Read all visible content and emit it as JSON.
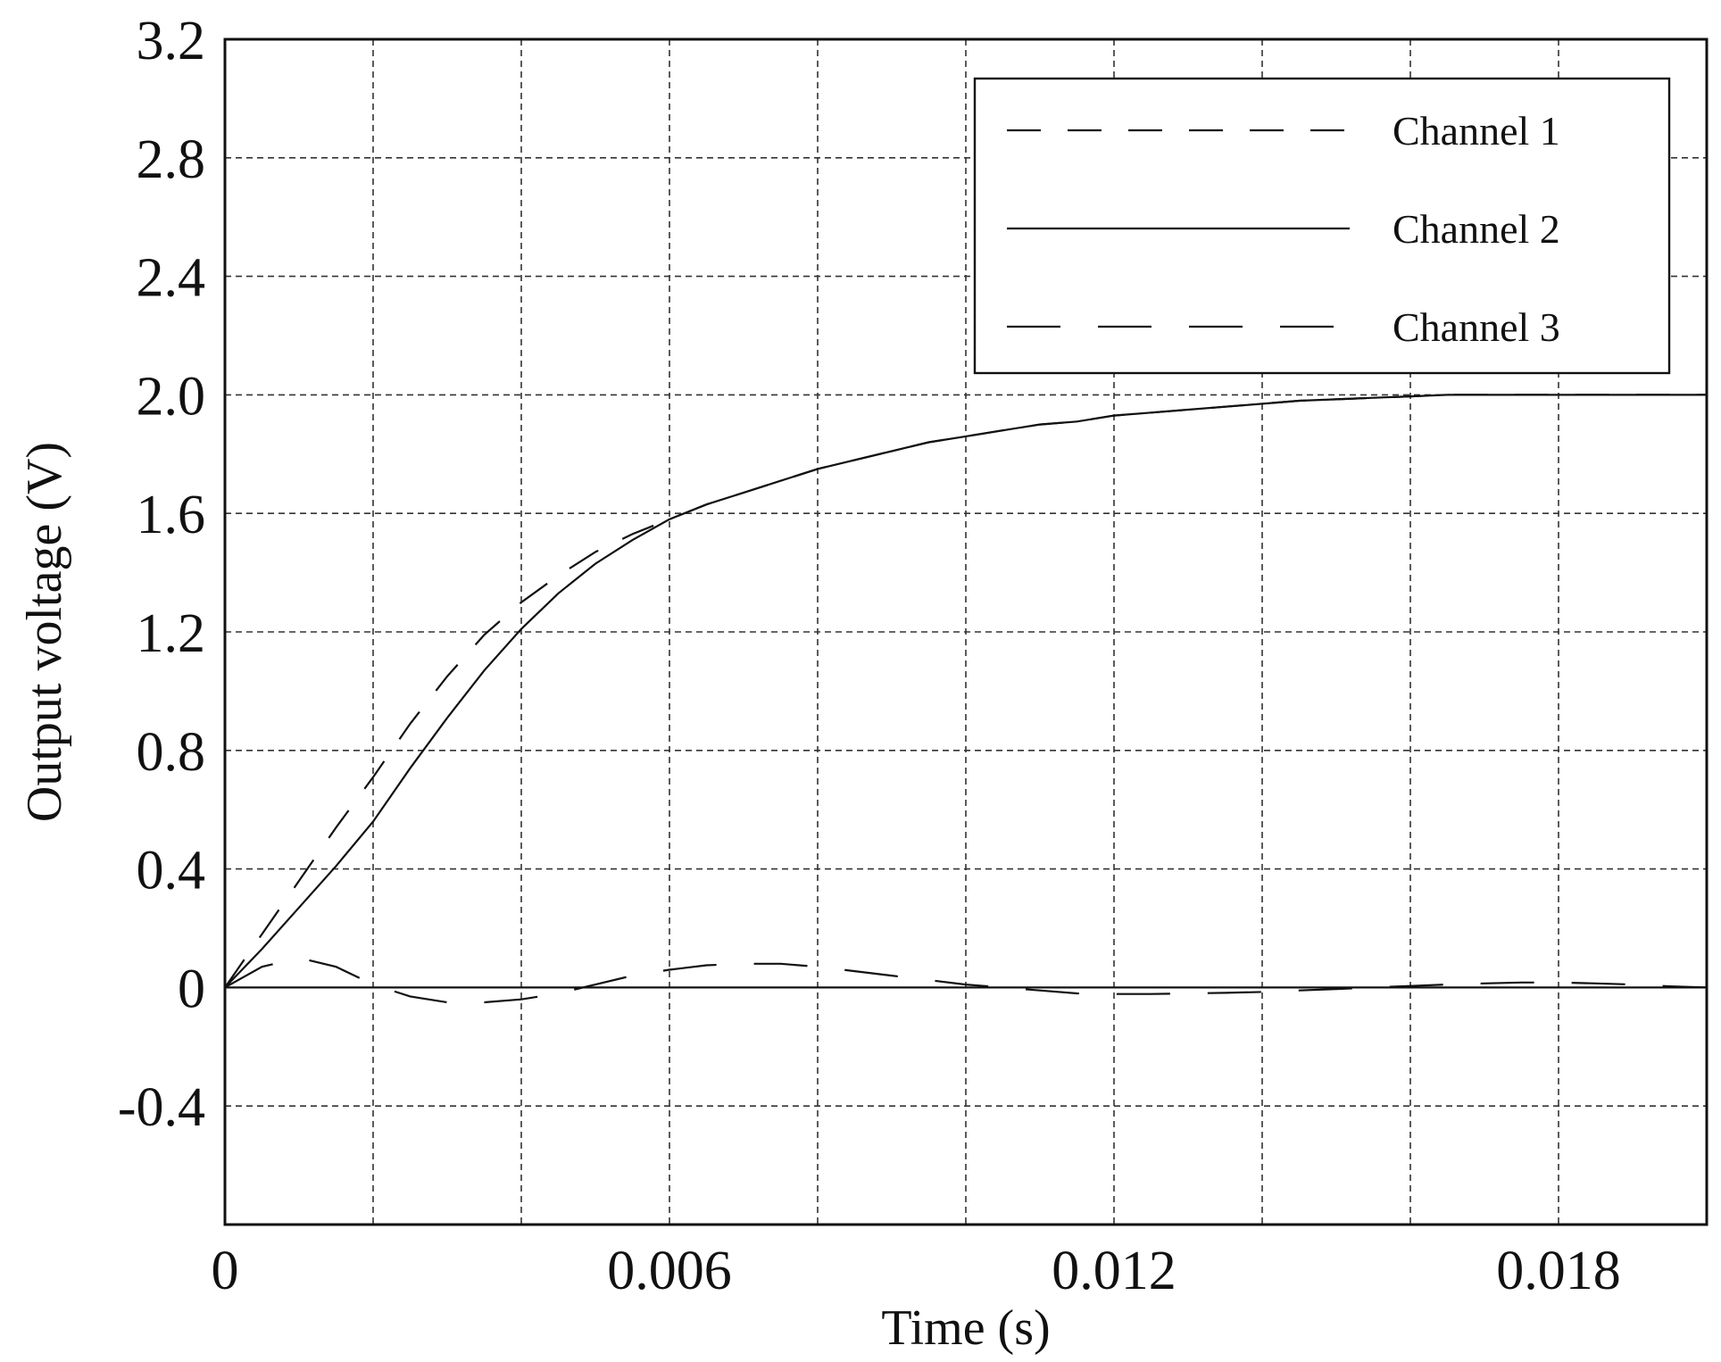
{
  "chart_data": {
    "type": "line",
    "xlabel": "Time (s)",
    "ylabel": "Output voltage (V)",
    "xlim": [
      0,
      0.02
    ],
    "ylim": [
      -0.8,
      3.2
    ],
    "grid": true,
    "legend_position": "top-right",
    "x_ticks": [
      0,
      0.006,
      0.012,
      0.018
    ],
    "x_tick_labels": [
      "0",
      "0.006",
      "0.012",
      "0.018"
    ],
    "x_grid": [
      0.002,
      0.004,
      0.006,
      0.008,
      0.01,
      0.012,
      0.014,
      0.016,
      0.018
    ],
    "y_ticks": [
      -0.4,
      0,
      0.4,
      0.8,
      1.2,
      1.6,
      2.0,
      2.4,
      2.8,
      3.2
    ],
    "y_tick_labels": [
      "-0.4",
      "0",
      "0.4",
      "0.8",
      "1.2",
      "1.6",
      "2.0",
      "2.4",
      "2.8",
      "3.2"
    ],
    "series": [
      {
        "name": "Channel 1",
        "dash": "38 30",
        "x": [
          0,
          0.0005,
          0.001,
          0.0015,
          0.002,
          0.0025,
          0.003,
          0.0035,
          0.004,
          0.0045,
          0.005,
          0.0055,
          0.006,
          0.0065,
          0.007,
          0.0075,
          0.008,
          0.0085,
          0.009,
          0.0095,
          0.01,
          0.0105,
          0.011,
          0.0115,
          0.012,
          0.0125,
          0.013,
          0.0135,
          0.014,
          0.0145,
          0.015,
          0.0155,
          0.016,
          0.0165,
          0.017,
          0.0175,
          0.018,
          0.0185,
          0.019,
          0.0195,
          0.02
        ],
        "y": [
          0,
          0.18,
          0.36,
          0.54,
          0.71,
          0.89,
          1.05,
          1.19,
          1.3,
          1.39,
          1.47,
          1.53,
          1.58,
          1.63,
          1.67,
          1.71,
          1.75,
          1.78,
          1.81,
          1.84,
          1.86,
          1.88,
          1.9,
          1.91,
          1.93,
          1.94,
          1.95,
          1.96,
          1.97,
          1.98,
          1.985,
          1.99,
          1.995,
          2.0,
          2.0,
          2.0,
          2.0,
          2.0,
          2.0,
          2.0,
          2.0
        ]
      },
      {
        "name": "Channel 2",
        "dash": "",
        "x": [
          0,
          0.0005,
          0.001,
          0.0015,
          0.002,
          0.0025,
          0.003,
          0.0035,
          0.004,
          0.0045,
          0.005,
          0.0055,
          0.006,
          0.0065,
          0.007,
          0.0075,
          0.008,
          0.0085,
          0.009,
          0.0095,
          0.01,
          0.0105,
          0.011,
          0.0115,
          0.012,
          0.0125,
          0.013,
          0.0135,
          0.014,
          0.0145,
          0.015,
          0.0155,
          0.016,
          0.0165,
          0.017,
          0.0175,
          0.018,
          0.0185,
          0.019,
          0.0195,
          0.02
        ],
        "y": [
          0,
          0.13,
          0.27,
          0.41,
          0.56,
          0.74,
          0.91,
          1.07,
          1.21,
          1.33,
          1.43,
          1.51,
          1.58,
          1.63,
          1.67,
          1.71,
          1.75,
          1.78,
          1.81,
          1.84,
          1.86,
          1.88,
          1.9,
          1.91,
          1.93,
          1.94,
          1.95,
          1.96,
          1.97,
          1.98,
          1.985,
          1.99,
          1.995,
          2.0,
          2.0,
          2.0,
          2.0,
          2.0,
          2.0,
          2.0,
          2.0
        ]
      },
      {
        "name": "Channel 3",
        "dash": "60 42",
        "x": [
          0,
          0.0005,
          0.001,
          0.0015,
          0.002,
          0.0025,
          0.003,
          0.0035,
          0.004,
          0.0045,
          0.005,
          0.0055,
          0.006,
          0.0065,
          0.007,
          0.0075,
          0.008,
          0.0085,
          0.009,
          0.0095,
          0.01,
          0.0105,
          0.011,
          0.0115,
          0.012,
          0.0125,
          0.013,
          0.0135,
          0.014,
          0.0145,
          0.015,
          0.0155,
          0.016,
          0.0165,
          0.017,
          0.0175,
          0.018,
          0.0185,
          0.019,
          0.0195,
          0.02
        ],
        "y": [
          0,
          0.07,
          0.1,
          0.07,
          0.01,
          -0.03,
          -0.05,
          -0.05,
          -0.04,
          -0.02,
          0.01,
          0.04,
          0.06,
          0.075,
          0.08,
          0.08,
          0.07,
          0.055,
          0.04,
          0.025,
          0.01,
          0.0,
          -0.01,
          -0.02,
          -0.022,
          -0.022,
          -0.02,
          -0.018,
          -0.015,
          -0.01,
          -0.005,
          0.0,
          0.005,
          0.01,
          0.014,
          0.017,
          0.017,
          0.014,
          0.01,
          0.004,
          0.0
        ]
      }
    ]
  }
}
